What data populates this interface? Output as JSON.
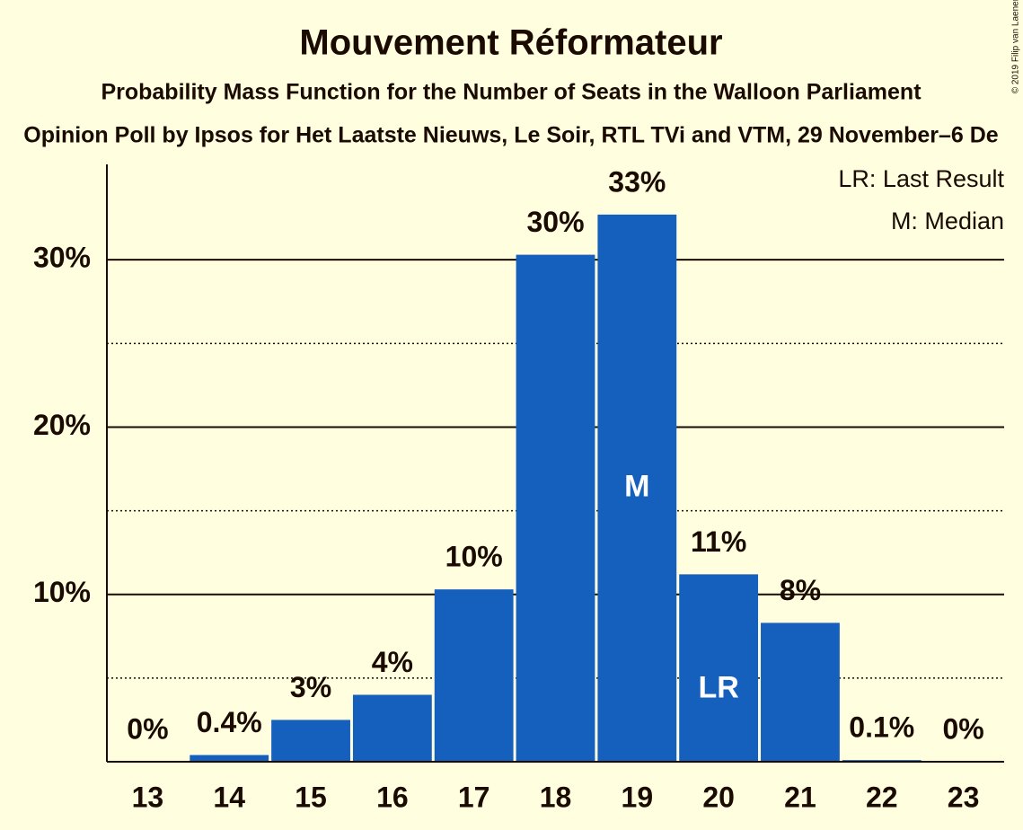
{
  "chart_data": {
    "type": "bar",
    "title": "Mouvement Réformateur",
    "subtitle": "Probability Mass Function for the Number of Seats in the Walloon Parliament",
    "subtitle2": "Opinion Poll by Ipsos for Het Laatste Nieuws, Le Soir, RTL TVi and VTM, 29 November–6 De",
    "copyright": "© 2019 Filip van Laenen",
    "legend": [
      "LR: Last Result",
      "M: Median"
    ],
    "legend_position": "upper right",
    "categories": [
      13,
      14,
      15,
      16,
      17,
      18,
      19,
      20,
      21,
      22,
      23
    ],
    "values": [
      0,
      0.4,
      2.5,
      4.0,
      10.3,
      30.3,
      32.7,
      11.2,
      8.3,
      0.1,
      0
    ],
    "value_labels": [
      "0%",
      "0.4%",
      "3%",
      "4%",
      "10%",
      "30%",
      "33%",
      "11%",
      "8%",
      "0.1%",
      "0%"
    ],
    "annotations": [
      {
        "category": 19,
        "text": "M"
      },
      {
        "category": 20,
        "text": "LR"
      }
    ],
    "color": "#1560bd",
    "ylim": [
      0,
      35.7
    ],
    "yticks": [
      {
        "value": 10,
        "label": "10%"
      },
      {
        "value": 20,
        "label": "20%"
      },
      {
        "value": 30,
        "label": "30%"
      }
    ],
    "minor_yticks": [
      5,
      15,
      25
    ],
    "grid": true
  }
}
